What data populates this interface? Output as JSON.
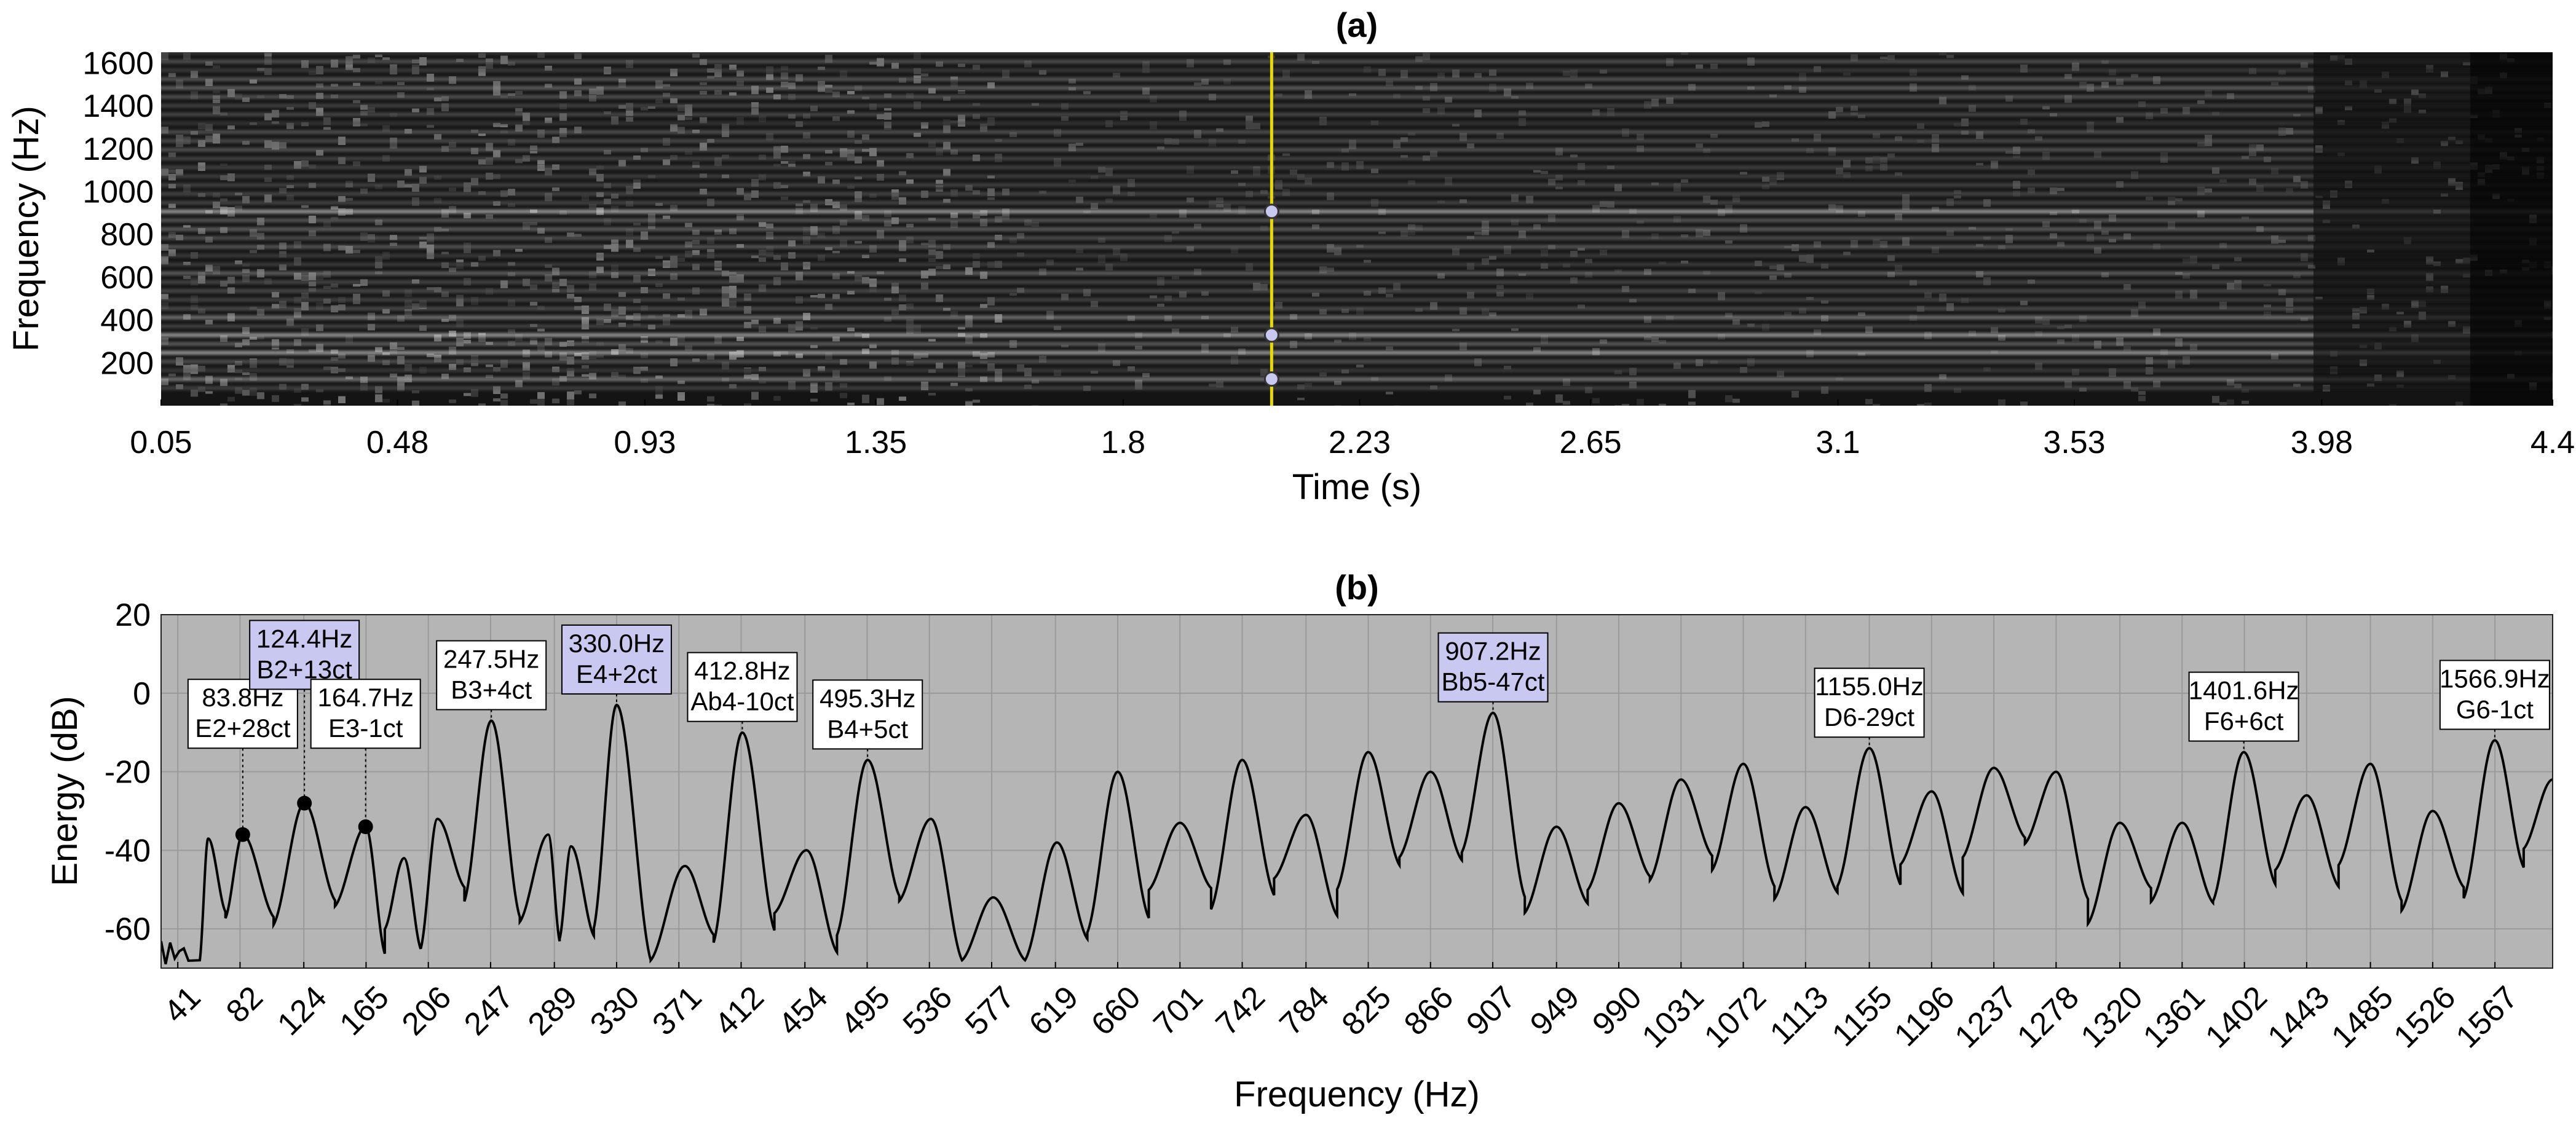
{
  "chart_data": [
    {
      "panel": "(a)",
      "type": "heatmap",
      "title": "(a)",
      "xlabel": "Time (s)",
      "ylabel": "Frequency (Hz)",
      "xlim": [
        0.05,
        4.4
      ],
      "ylim": [
        0,
        1650
      ],
      "x_ticks": [
        "0.05",
        "0.48",
        "0.93",
        "1.35",
        "1.8",
        "2.23",
        "2.65",
        "3.1",
        "3.53",
        "3.98",
        "4.4"
      ],
      "y_ticks": [
        "200",
        "400",
        "600",
        "800",
        "1000",
        "1200",
        "1400",
        "1600"
      ],
      "colormap": "gray",
      "cursor_time": 2.07,
      "cursor_color": "#e8d800",
      "marked_points": [
        {
          "time": 2.07,
          "freq": 124.4
        },
        {
          "time": 2.07,
          "freq": 330.0
        },
        {
          "time": 2.07,
          "freq": 907.2
        }
      ]
    },
    {
      "panel": "(b)",
      "type": "line",
      "title": "(b)",
      "xlabel": "Frequency (Hz)",
      "ylabel": "Energy (dB)",
      "xlim": [
        30,
        1605
      ],
      "ylim": [
        -70,
        20
      ],
      "grid": true,
      "background": "#b5b5b5",
      "x_ticks": [
        "41",
        "82",
        "124",
        "165",
        "206",
        "247",
        "289",
        "330",
        "371",
        "412",
        "454",
        "495",
        "536",
        "577",
        "619",
        "660",
        "701",
        "742",
        "784",
        "825",
        "866",
        "907",
        "949",
        "990",
        "1031",
        "1072",
        "1113",
        "1155",
        "1196",
        "1237",
        "1278",
        "1320",
        "1361",
        "1402",
        "1443",
        "1485",
        "1526",
        "1567"
      ],
      "y_ticks": [
        "20",
        "0",
        "-20",
        "-40",
        "-60"
      ],
      "peaks": [
        {
          "x": 61,
          "y": -37
        },
        {
          "x": 83.8,
          "y": -36
        },
        {
          "x": 124.4,
          "y": -28
        },
        {
          "x": 164.7,
          "y": -34
        },
        {
          "x": 190,
          "y": -42
        },
        {
          "x": 212,
          "y": -32
        },
        {
          "x": 247.5,
          "y": -7
        },
        {
          "x": 285,
          "y": -36
        },
        {
          "x": 300,
          "y": -39
        },
        {
          "x": 330.0,
          "y": -3
        },
        {
          "x": 375,
          "y": -44
        },
        {
          "x": 412.8,
          "y": -10
        },
        {
          "x": 455,
          "y": -40
        },
        {
          "x": 495.3,
          "y": -17
        },
        {
          "x": 537,
          "y": -32
        },
        {
          "x": 578,
          "y": -52
        },
        {
          "x": 620,
          "y": -38
        },
        {
          "x": 660,
          "y": -20
        },
        {
          "x": 701,
          "y": -33
        },
        {
          "x": 742,
          "y": -17
        },
        {
          "x": 784,
          "y": -31
        },
        {
          "x": 825,
          "y": -15
        },
        {
          "x": 866,
          "y": -20
        },
        {
          "x": 907.2,
          "y": -5
        },
        {
          "x": 949,
          "y": -34
        },
        {
          "x": 990,
          "y": -28
        },
        {
          "x": 1031,
          "y": -22
        },
        {
          "x": 1072,
          "y": -18
        },
        {
          "x": 1113,
          "y": -29
        },
        {
          "x": 1155.0,
          "y": -14
        },
        {
          "x": 1196,
          "y": -25
        },
        {
          "x": 1237,
          "y": -19
        },
        {
          "x": 1278,
          "y": -20
        },
        {
          "x": 1320,
          "y": -33
        },
        {
          "x": 1361,
          "y": -33
        },
        {
          "x": 1401.6,
          "y": -15
        },
        {
          "x": 1443,
          "y": -26
        },
        {
          "x": 1485,
          "y": -18
        },
        {
          "x": 1526,
          "y": -30
        },
        {
          "x": 1566.9,
          "y": -12
        },
        {
          "x": 1605,
          "y": -22
        }
      ],
      "annotations": [
        {
          "freq": 83.8,
          "energy": -36,
          "label": [
            "83.8Hz",
            "E2+28ct"
          ],
          "highlight": false,
          "marker": true
        },
        {
          "freq": 124.4,
          "energy": -28,
          "label": [
            "124.4Hz",
            "B2+13ct"
          ],
          "highlight": true,
          "marker": true
        },
        {
          "freq": 164.7,
          "energy": -34,
          "label": [
            "164.7Hz",
            "E3-1ct"
          ],
          "highlight": false,
          "marker": true
        },
        {
          "freq": 247.5,
          "energy": -7,
          "label": [
            "247.5Hz",
            "B3+4ct"
          ],
          "highlight": false,
          "marker": false
        },
        {
          "freq": 330.0,
          "energy": -3,
          "label": [
            "330.0Hz",
            "E4+2ct"
          ],
          "highlight": true,
          "marker": false
        },
        {
          "freq": 412.8,
          "energy": -10,
          "label": [
            "412.8Hz",
            "Ab4-10ct"
          ],
          "highlight": false,
          "marker": false
        },
        {
          "freq": 495.3,
          "energy": -17,
          "label": [
            "495.3Hz",
            "B4+5ct"
          ],
          "highlight": false,
          "marker": false
        },
        {
          "freq": 907.2,
          "energy": -5,
          "label": [
            "907.2Hz",
            "Bb5-47ct"
          ],
          "highlight": true,
          "marker": false
        },
        {
          "freq": 1155.0,
          "energy": -14,
          "label": [
            "1155.0Hz",
            "D6-29ct"
          ],
          "highlight": false,
          "marker": false
        },
        {
          "freq": 1401.6,
          "energy": -15,
          "label": [
            "1401.6Hz",
            "F6+6ct"
          ],
          "highlight": false,
          "marker": false
        },
        {
          "freq": 1566.9,
          "energy": -12,
          "label": [
            "1566.9Hz",
            "G6-1ct"
          ],
          "highlight": false,
          "marker": false
        }
      ],
      "highlight_color": "#c8c8f0"
    }
  ]
}
